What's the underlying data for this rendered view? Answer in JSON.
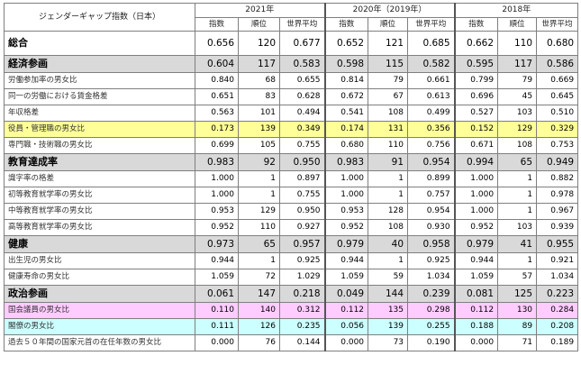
{
  "table": {
    "title": "ジェンダーギャップ指数（日本）",
    "years": [
      "2021年",
      "2020年（2019年）",
      "2018年"
    ],
    "columns": [
      "指数",
      "順位",
      "世界平均"
    ],
    "rows": [
      {
        "label": "総合",
        "kind": "total",
        "hl": "",
        "v": [
          "0.656",
          "120",
          "0.677",
          "0.652",
          "121",
          "0.685",
          "0.662",
          "110",
          "0.680"
        ]
      },
      {
        "label": "経済参画",
        "kind": "cat",
        "hl": "",
        "v": [
          "0.604",
          "117",
          "0.583",
          "0.598",
          "115",
          "0.582",
          "0.595",
          "117",
          "0.586"
        ]
      },
      {
        "label": "労働参加率の男女比",
        "kind": "sub",
        "hl": "",
        "v": [
          "0.840",
          "68",
          "0.655",
          "0.814",
          "79",
          "0.661",
          "0.799",
          "79",
          "0.669"
        ]
      },
      {
        "label": "同一の労働における賃金格差",
        "kind": "sub",
        "hl": "",
        "v": [
          "0.651",
          "83",
          "0.628",
          "0.672",
          "67",
          "0.613",
          "0.696",
          "45",
          "0.645"
        ]
      },
      {
        "label": "年収格差",
        "kind": "sub",
        "hl": "",
        "v": [
          "0.563",
          "101",
          "0.494",
          "0.541",
          "108",
          "0.499",
          "0.527",
          "103",
          "0.510"
        ]
      },
      {
        "label": "役員・管理職の男女比",
        "kind": "sub",
        "hl": "yellow",
        "v": [
          "0.173",
          "139",
          "0.349",
          "0.174",
          "131",
          "0.356",
          "0.152",
          "129",
          "0.329"
        ]
      },
      {
        "label": "専門職・技術職の男女比",
        "kind": "sub",
        "hl": "",
        "v": [
          "0.699",
          "105",
          "0.755",
          "0.680",
          "110",
          "0.756",
          "0.671",
          "108",
          "0.753"
        ]
      },
      {
        "label": "教育達成率",
        "kind": "cat",
        "hl": "",
        "v": [
          "0.983",
          "92",
          "0.950",
          "0.983",
          "91",
          "0.954",
          "0.994",
          "65",
          "0.949"
        ]
      },
      {
        "label": "識字率の格差",
        "kind": "sub",
        "hl": "",
        "v": [
          "1.000",
          "1",
          "0.897",
          "1.000",
          "1",
          "0.899",
          "1.000",
          "1",
          "0.882"
        ]
      },
      {
        "label": "初等教育就学率の男女比",
        "kind": "sub",
        "hl": "",
        "v": [
          "1.000",
          "1",
          "0.755",
          "1.000",
          "1",
          "0.757",
          "1.000",
          "1",
          "0.978"
        ]
      },
      {
        "label": "中等教育就学率の男女比",
        "kind": "sub",
        "hl": "",
        "v": [
          "0.953",
          "129",
          "0.950",
          "0.953",
          "128",
          "0.954",
          "1.000",
          "1",
          "0.967"
        ]
      },
      {
        "label": "高等教育就学率の男女比",
        "kind": "sub",
        "hl": "",
        "v": [
          "0.952",
          "110",
          "0.927",
          "0.952",
          "108",
          "0.930",
          "0.952",
          "103",
          "0.939"
        ]
      },
      {
        "label": "健康",
        "kind": "cat",
        "hl": "",
        "v": [
          "0.973",
          "65",
          "0.957",
          "0.979",
          "40",
          "0.958",
          "0.979",
          "41",
          "0.955"
        ]
      },
      {
        "label": "出生児の男女比",
        "kind": "sub",
        "hl": "",
        "v": [
          "0.944",
          "1",
          "0.925",
          "0.944",
          "1",
          "0.925",
          "0.944",
          "1",
          "0.921"
        ]
      },
      {
        "label": "健康寿命の男女比",
        "kind": "sub",
        "hl": "",
        "v": [
          "1.059",
          "72",
          "1.029",
          "1.059",
          "59",
          "1.034",
          "1.059",
          "57",
          "1.034"
        ]
      },
      {
        "label": "政治参画",
        "kind": "cat",
        "hl": "",
        "v": [
          "0.061",
          "147",
          "0.218",
          "0.049",
          "144",
          "0.239",
          "0.081",
          "125",
          "0.223"
        ]
      },
      {
        "label": "国会議員の男女比",
        "kind": "sub",
        "hl": "pink",
        "v": [
          "0.110",
          "140",
          "0.312",
          "0.112",
          "135",
          "0.298",
          "0.112",
          "130",
          "0.284"
        ]
      },
      {
        "label": "閣僚の男女比",
        "kind": "sub",
        "hl": "cyan",
        "v": [
          "0.111",
          "126",
          "0.235",
          "0.056",
          "139",
          "0.255",
          "0.188",
          "89",
          "0.208"
        ]
      },
      {
        "label": "過去５０年間の国家元首の在任年数の男女比",
        "kind": "sub",
        "hl": "",
        "v": [
          "0.000",
          "76",
          "0.144",
          "0.000",
          "73",
          "0.190",
          "0.000",
          "71",
          "0.189"
        ]
      }
    ]
  }
}
